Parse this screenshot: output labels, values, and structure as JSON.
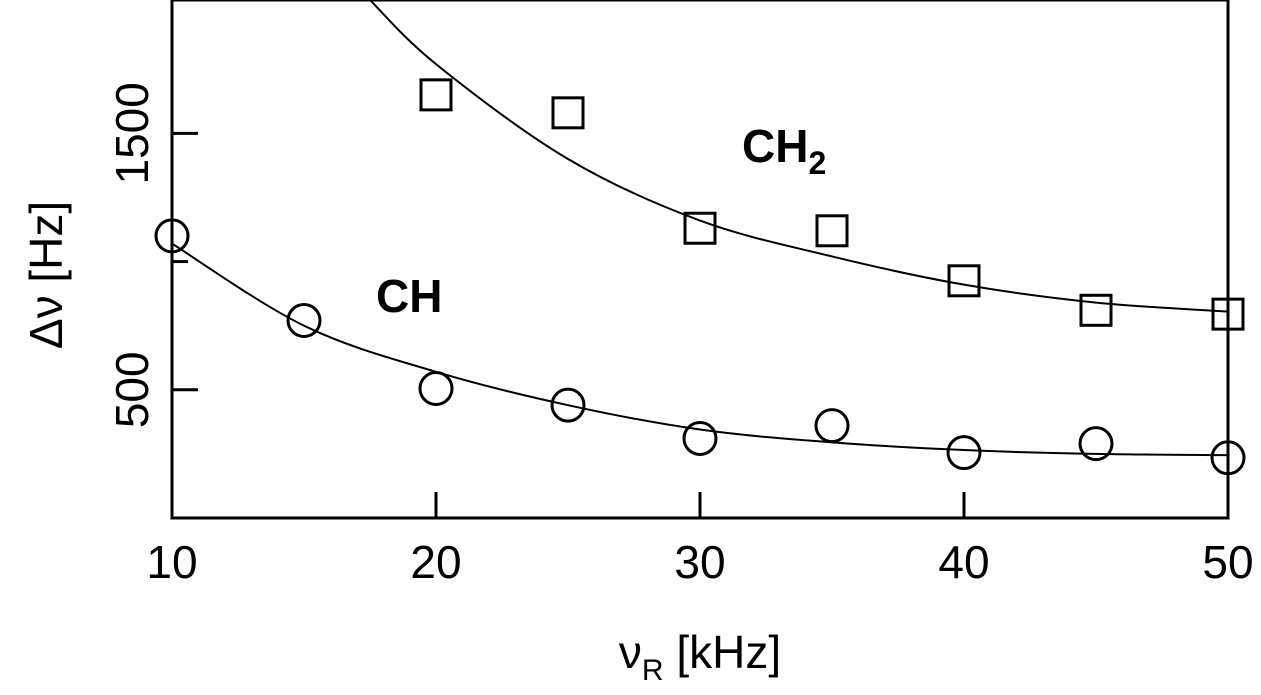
{
  "chart_data": {
    "type": "scatter",
    "xlabel": {
      "main": "ν",
      "sub": "R",
      "unit": " [kHz]"
    },
    "ylabel": "Δν [Hz]",
    "xlim": [
      10,
      50
    ],
    "ylim": [
      0,
      2020
    ],
    "x_ticks": [
      10,
      20,
      30,
      40,
      50
    ],
    "y_ticks": [
      500,
      1500
    ],
    "y_minor_ticks": [
      1000
    ],
    "grid": false,
    "series": [
      {
        "name": "CH",
        "label_parts": {
          "main": "CH",
          "sub": ""
        },
        "marker": "circle",
        "x": [
          10,
          15,
          20,
          25,
          30,
          35,
          40,
          45,
          50
        ],
        "y": [
          1100,
          770,
          505,
          440,
          310,
          360,
          255,
          290,
          235
        ],
        "fit_x": [
          10,
          15,
          20,
          25,
          30,
          35,
          40,
          45,
          50
        ],
        "fit_y": [
          1070,
          750,
          570,
          440,
          345,
          295,
          265,
          250,
          245
        ]
      },
      {
        "name": "CH2",
        "label_parts": {
          "main": "CH",
          "sub": "2"
        },
        "marker": "square",
        "x": [
          20,
          25,
          30,
          35,
          40,
          45,
          50
        ],
        "y": [
          1650,
          1580,
          1130,
          1120,
          925,
          810,
          795
        ],
        "fit_x": [
          17.5,
          20,
          25,
          30,
          35,
          40,
          45,
          50
        ],
        "fit_y": [
          2020,
          1770,
          1400,
          1160,
          1020,
          910,
          840,
          805
        ]
      }
    ]
  }
}
